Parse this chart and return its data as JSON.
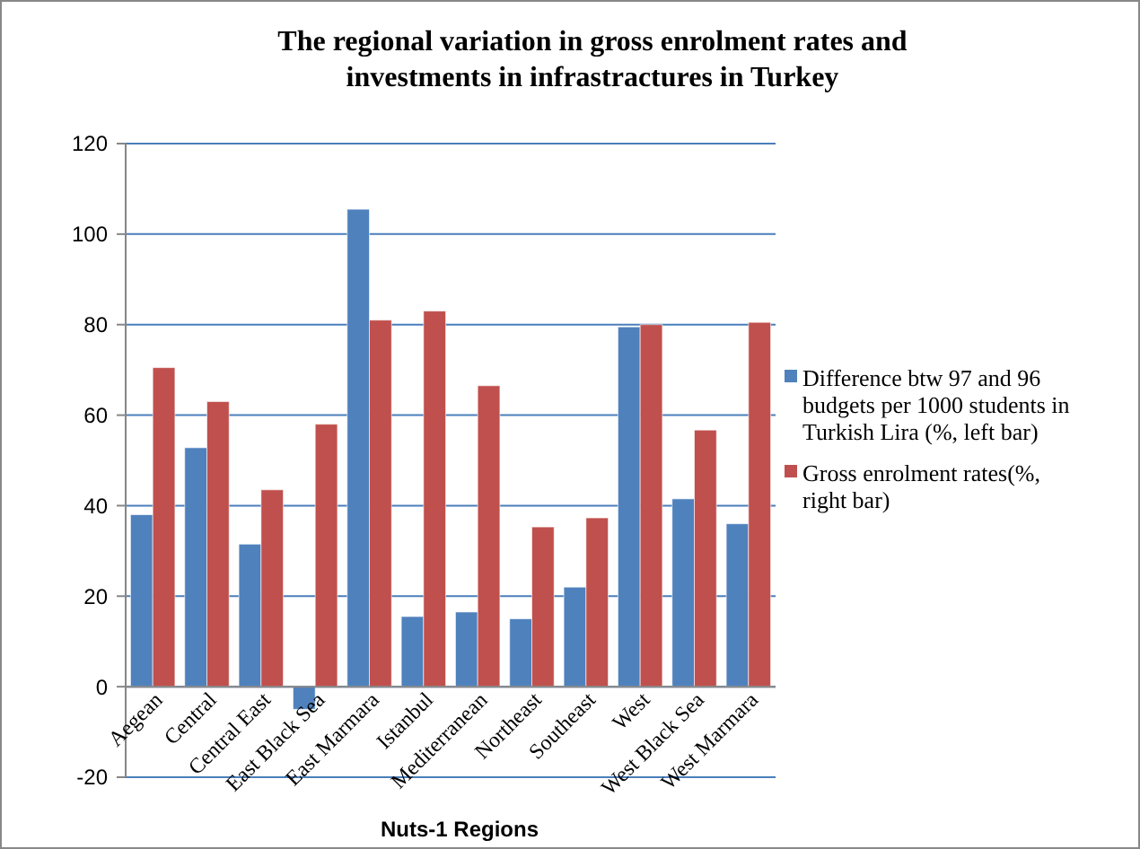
{
  "chart_data": {
    "type": "bar",
    "title": "The regional variation in gross enrolment rates and investments in infrastractures in Turkey",
    "xlabel": "Nuts-1 Regions",
    "categories": [
      "Aegean",
      "Central",
      "Central East",
      "East Black Sea",
      "East Marmara",
      "Istanbul",
      "Mediterranean",
      "Northeast",
      "Southeast",
      "West",
      "West Black Sea",
      "West Marmara"
    ],
    "series": [
      {
        "name": "Difference btw 97 and 96 budgets per 1000 students in Turkish Lira (%, left bar)",
        "color": "#4f81bd",
        "values": [
          38,
          52.8,
          31.5,
          -5,
          105.5,
          15.5,
          16.5,
          15,
          22,
          79.5,
          41.5,
          36
        ]
      },
      {
        "name": "Gross enrolment rates(%, right bar)",
        "color": "#c0504d",
        "values": [
          70.5,
          63,
          43.5,
          58,
          81,
          83,
          66.5,
          35.3,
          37.3,
          80,
          56.7,
          80.5
        ]
      }
    ],
    "ylim": [
      -20,
      120
    ],
    "yticks": [
      -20,
      0,
      20,
      40,
      60,
      80,
      100,
      120
    ],
    "grid": "y",
    "legend": "right"
  }
}
